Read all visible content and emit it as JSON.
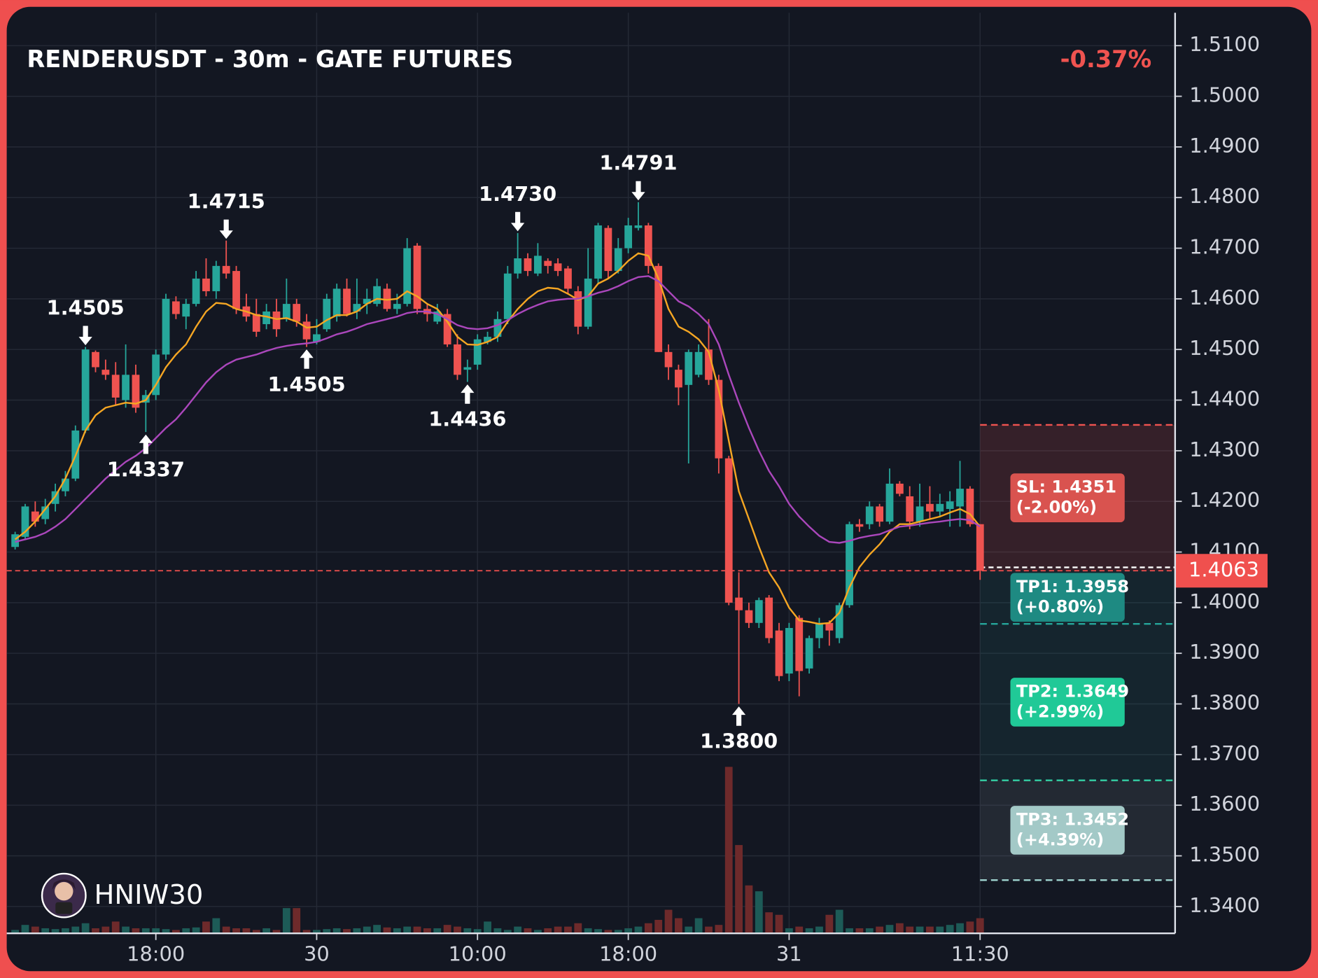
{
  "chart_data": {
    "type": "candlestick",
    "title": "RENDERUSDT - 30m - GATE FUTURES",
    "change": "-0.37%",
    "watermark": "HNIW30",
    "categories": [
      null,
      null,
      null,
      null,
      null,
      null,
      null,
      null,
      null,
      null,
      null,
      null,
      null,
      null,
      "18:00",
      null,
      null,
      null,
      null,
      null,
      null,
      null,
      null,
      null,
      null,
      null,
      null,
      null,
      null,
      null,
      "30",
      null,
      null,
      null,
      null,
      null,
      null,
      null,
      null,
      null,
      null,
      null,
      null,
      null,
      null,
      null,
      "10:00",
      null,
      null,
      null,
      null,
      null,
      null,
      null,
      null,
      null,
      null,
      null,
      null,
      null,
      null,
      "18:00",
      null,
      null,
      null,
      null,
      null,
      null,
      null,
      null,
      null,
      null,
      null,
      null,
      null,
      null,
      null,
      "31",
      null,
      null,
      null,
      null,
      null,
      null,
      null,
      null,
      null,
      null,
      null,
      null,
      null,
      null,
      null,
      null,
      null,
      null,
      "11:30"
    ],
    "open": [
      1.411,
      1.413,
      1.418,
      1.4165,
      1.4195,
      1.422,
      1.4245,
      1.434,
      1.4495,
      1.446,
      1.445,
      1.44,
      1.445,
      1.4395,
      1.441,
      1.449,
      1.4595,
      1.4565,
      1.459,
      1.464,
      1.4615,
      1.4665,
      1.4655,
      1.4585,
      1.457,
      1.455,
      1.4575,
      1.456,
      1.459,
      1.4555,
      1.4515,
      1.454,
      1.4565,
      1.462,
      1.4575,
      1.459,
      1.459,
      1.462,
      1.458,
      1.459,
      1.4705,
      1.458,
      1.4555,
      1.457,
      1.451,
      1.446,
      1.447,
      1.4515,
      1.4525,
      1.456,
      1.465,
      1.468,
      1.465,
      1.4675,
      1.467,
      1.466,
      1.4615,
      1.4545,
      1.464,
      1.474,
      1.4655,
      1.47,
      1.474,
      1.4745,
      1.4665,
      1.4495,
      1.446,
      1.443,
      1.445,
      1.45,
      1.444,
      1.4285,
      1.401,
      1.3985,
      1.396,
      1.401,
      1.3945,
      1.386,
      1.397,
      1.387,
      1.393,
      1.396,
      1.393,
      1.3995,
      1.4155,
      1.4155,
      1.419,
      1.416,
      1.4235,
      1.421,
      1.416,
      1.4195,
      1.418,
      1.4185,
      1.419,
      1.4225,
      1.4155
    ],
    "high": [
      1.414,
      1.4195,
      1.42,
      1.4205,
      1.4235,
      1.426,
      1.435,
      1.4505,
      1.4498,
      1.448,
      1.4475,
      1.451,
      1.447,
      1.442,
      1.45,
      1.461,
      1.4605,
      1.46,
      1.4655,
      1.468,
      1.4675,
      1.4715,
      1.4665,
      1.461,
      1.46,
      1.459,
      1.46,
      1.464,
      1.46,
      1.457,
      1.456,
      1.461,
      1.463,
      1.464,
      1.464,
      1.462,
      1.464,
      1.463,
      1.461,
      1.472,
      1.471,
      1.459,
      1.459,
      1.458,
      1.453,
      1.448,
      1.453,
      1.4535,
      1.4575,
      1.4665,
      1.473,
      1.469,
      1.471,
      1.468,
      1.468,
      1.4665,
      1.4625,
      1.47,
      1.475,
      1.4745,
      1.472,
      1.476,
      1.4791,
      1.475,
      1.467,
      1.451,
      1.447,
      1.45,
      1.451,
      1.456,
      1.445,
      1.429,
      1.406,
      1.4,
      1.401,
      1.4015,
      1.396,
      1.396,
      1.3975,
      1.3935,
      1.397,
      1.3965,
      1.4,
      1.416,
      1.4165,
      1.42,
      1.4195,
      1.4265,
      1.424,
      1.423,
      1.4235,
      1.423,
      1.4215,
      1.422,
      1.428,
      1.423,
      1.4155
    ],
    "low": [
      1.4105,
      1.4125,
      1.415,
      1.4155,
      1.418,
      1.421,
      1.424,
      1.4335,
      1.4455,
      1.444,
      1.439,
      1.4385,
      1.4375,
      1.4337,
      1.44,
      1.448,
      1.456,
      1.454,
      1.4585,
      1.4605,
      1.46,
      1.464,
      1.457,
      1.4555,
      1.4525,
      1.454,
      1.4525,
      1.4555,
      1.4545,
      1.4505,
      1.451,
      1.4535,
      1.4555,
      1.4565,
      1.456,
      1.457,
      1.4585,
      1.4575,
      1.457,
      1.4585,
      1.457,
      1.4555,
      1.455,
      1.4505,
      1.444,
      1.4436,
      1.446,
      1.451,
      1.4515,
      1.455,
      1.464,
      1.4645,
      1.4645,
      1.465,
      1.4645,
      1.461,
      1.453,
      1.454,
      1.463,
      1.464,
      1.465,
      1.469,
      1.4735,
      1.465,
      1.4495,
      1.444,
      1.439,
      1.4275,
      1.4445,
      1.443,
      1.4255,
      1.3995,
      1.38,
      1.395,
      1.395,
      1.392,
      1.3845,
      1.3845,
      1.3815,
      1.386,
      1.391,
      1.3915,
      1.392,
      1.399,
      1.414,
      1.4145,
      1.415,
      1.4155,
      1.421,
      1.4145,
      1.415,
      1.4165,
      1.417,
      1.415,
      1.415,
      1.415,
      1.4045
    ],
    "close": [
      1.4135,
      1.419,
      1.416,
      1.419,
      1.422,
      1.4245,
      1.434,
      1.45,
      1.4465,
      1.445,
      1.4405,
      1.445,
      1.4385,
      1.441,
      1.449,
      1.46,
      1.457,
      1.459,
      1.464,
      1.4615,
      1.4665,
      1.465,
      1.458,
      1.4565,
      1.4535,
      1.4575,
      1.454,
      1.459,
      1.4555,
      1.452,
      1.453,
      1.46,
      1.462,
      1.457,
      1.459,
      1.46,
      1.4625,
      1.458,
      1.459,
      1.47,
      1.458,
      1.457,
      1.4575,
      1.451,
      1.445,
      1.4465,
      1.452,
      1.4525,
      1.456,
      1.465,
      1.468,
      1.4655,
      1.4685,
      1.4665,
      1.4655,
      1.462,
      1.4545,
      1.464,
      1.4745,
      1.4655,
      1.47,
      1.4745,
      1.4745,
      1.4665,
      1.4495,
      1.4465,
      1.4425,
      1.4495,
      1.4495,
      1.444,
      1.4285,
      1.4,
      1.3985,
      1.396,
      1.4005,
      1.393,
      1.3855,
      1.395,
      1.3865,
      1.393,
      1.396,
      1.3945,
      1.3995,
      1.4155,
      1.415,
      1.419,
      1.416,
      1.4235,
      1.4215,
      1.416,
      1.419,
      1.418,
      1.4195,
      1.42,
      1.4225,
      1.4155,
      1.4063
    ],
    "volume": [
      4,
      10,
      8,
      6,
      5,
      6,
      8,
      12,
      6,
      8,
      14,
      8,
      6,
      6,
      6,
      5,
      4,
      6,
      7,
      14,
      18,
      8,
      6,
      6,
      4,
      6,
      4,
      30,
      30,
      4,
      4,
      5,
      6,
      5,
      6,
      8,
      10,
      7,
      6,
      8,
      8,
      6,
      6,
      10,
      8,
      6,
      5,
      14,
      6,
      4,
      8,
      6,
      4,
      6,
      8,
      8,
      12,
      6,
      5,
      4,
      4,
      6,
      8,
      12,
      16,
      28,
      18,
      8,
      18,
      8,
      10,
      198,
      105,
      57,
      50,
      25,
      22,
      6,
      8,
      6,
      8,
      22,
      28,
      6,
      6,
      6,
      8,
      10,
      12,
      8,
      8,
      8,
      8,
      10,
      12,
      14,
      18
    ],
    "up_color": "#26a69a",
    "down_color": "#ef5350",
    "up_volume_color": "#1d5b57",
    "down_volume_color": "#6e2a2b",
    "lines": [
      {
        "color": "#f5a623",
        "values": [
          1.4125,
          1.414,
          1.416,
          1.4185,
          1.421,
          1.4245,
          1.429,
          1.434,
          1.437,
          1.4385,
          1.439,
          1.4395,
          1.4393,
          1.44,
          1.443,
          1.4465,
          1.449,
          1.451,
          1.4545,
          1.4575,
          1.4592,
          1.459,
          1.458,
          1.4575,
          1.4568,
          1.4565,
          1.456,
          1.4562,
          1.4555,
          1.4543,
          1.4545,
          1.4558,
          1.4568,
          1.4568,
          1.4575,
          1.459,
          1.46,
          1.4598,
          1.46,
          1.4615,
          1.4605,
          1.459,
          1.458,
          1.4555,
          1.4525,
          1.451,
          1.4509,
          1.4515,
          1.4525,
          1.4555,
          1.458,
          1.46,
          1.4615,
          1.4622,
          1.462,
          1.461,
          1.4598,
          1.4605,
          1.463,
          1.464,
          1.4655,
          1.4675,
          1.469,
          1.4685,
          1.464,
          1.458,
          1.4545,
          1.4535,
          1.452,
          1.4495,
          1.442,
          1.432,
          1.422,
          1.4165,
          1.411,
          1.406,
          1.403,
          1.399,
          1.3965,
          1.3962,
          1.3958,
          1.396,
          1.398,
          1.403,
          1.407,
          1.4095,
          1.4115,
          1.414,
          1.4155,
          1.4155,
          1.416,
          1.4165,
          1.417,
          1.4178,
          1.4185,
          1.4175,
          1.415
        ]
      },
      {
        "color": "#ab47bc",
        "values": [
          1.412,
          1.4125,
          1.413,
          1.4138,
          1.415,
          1.4165,
          1.4185,
          1.4205,
          1.4225,
          1.4245,
          1.4262,
          1.4278,
          1.429,
          1.4305,
          1.4325,
          1.4345,
          1.4362,
          1.4385,
          1.441,
          1.4435,
          1.4455,
          1.447,
          1.448,
          1.4485,
          1.449,
          1.4497,
          1.4503,
          1.4507,
          1.451,
          1.4512,
          1.4515,
          1.4522,
          1.453,
          1.4535,
          1.4542,
          1.455,
          1.4555,
          1.456,
          1.4565,
          1.4572,
          1.4575,
          1.4575,
          1.457,
          1.456,
          1.4548,
          1.4542,
          1.454,
          1.4542,
          1.4548,
          1.4558,
          1.457,
          1.458,
          1.4588,
          1.4595,
          1.4598,
          1.46,
          1.46,
          1.4605,
          1.4612,
          1.4617,
          1.4625,
          1.4635,
          1.4643,
          1.4645,
          1.4635,
          1.4615,
          1.4595,
          1.4585,
          1.457,
          1.455,
          1.451,
          1.445,
          1.4395,
          1.4345,
          1.43,
          1.426,
          1.423,
          1.4195,
          1.417,
          1.415,
          1.4132,
          1.412,
          1.4118,
          1.4122,
          1.4128,
          1.4132,
          1.4135,
          1.4143,
          1.415,
          1.4152,
          1.4155,
          1.4158,
          1.416,
          1.4163,
          1.4165,
          1.4163,
          1.415
        ]
      }
    ],
    "pivot_highs": [
      {
        "value": 1.4505,
        "label": "1.4505"
      },
      {
        "value": 1.4715,
        "label": "1.4715"
      },
      {
        "value": 1.473,
        "label": "1.4730"
      },
      {
        "value": 1.4791,
        "label": "1.4791"
      }
    ],
    "pivot_lows": [
      {
        "value": 1.4337,
        "label": "1.4337"
      },
      {
        "value": 1.4505,
        "label": "1.4505"
      },
      {
        "value": 1.4436,
        "label": "1.4436"
      },
      {
        "value": 1.38,
        "label": "1.3800"
      }
    ],
    "last_price": {
      "value": 1.4063,
      "label": "1.4063"
    },
    "last_price_color": "#f0504e",
    "levels": [
      {
        "value": 1.4351,
        "label": "SL: 1.4351",
        "change": "(-2.00%)",
        "color": "#ef5350",
        "box": "#d9534f",
        "zone": "rgba(239,83,80,0.16)"
      },
      {
        "value": 1.3958,
        "label": "TP1: 1.3958",
        "change": "(+0.80%)",
        "color": "#26a69a",
        "box": "#1e8a82",
        "zone": "rgba(38,166,154,0.10)"
      },
      {
        "value": 1.3649,
        "label": "TP2: 1.3649",
        "change": "(+2.99%)",
        "color": "#2ed3a5",
        "box": "#20c997",
        "zone": "rgba(38,166,154,0.10)"
      },
      {
        "value": 1.3452,
        "label": "TP3: 1.3452",
        "change": "(+4.39%)",
        "color": "#9fd3cf",
        "box": "#a3c9c7",
        "zone": "rgba(150,160,170,0.13)"
      }
    ],
    "ylim": [
      1.3347,
      1.5165
    ],
    "yticks": [
      {
        "value": 1.34,
        "label": "1.3400"
      },
      {
        "value": 1.35,
        "label": "1.3500"
      },
      {
        "value": 1.36,
        "label": "1.3600"
      },
      {
        "value": 1.37,
        "label": "1.3700"
      },
      {
        "value": 1.38,
        "label": "1.3800"
      },
      {
        "value": 1.39,
        "label": "1.3900"
      },
      {
        "value": 1.4,
        "label": "1.4000"
      },
      {
        "value": 1.41,
        "label": "1.4100"
      },
      {
        "value": 1.42,
        "label": "1.4200"
      },
      {
        "value": 1.43,
        "label": "1.4300"
      },
      {
        "value": 1.44,
        "label": "1.4400"
      },
      {
        "value": 1.45,
        "label": "1.4500"
      },
      {
        "value": 1.46,
        "label": "1.4600"
      },
      {
        "value": 1.47,
        "label": "1.4700"
      },
      {
        "value": 1.48,
        "label": "1.4800"
      },
      {
        "value": 1.49,
        "label": "1.4900"
      },
      {
        "value": 1.5,
        "label": "1.5000"
      },
      {
        "value": 1.51,
        "label": "1.5100"
      }
    ],
    "grid": true
  }
}
